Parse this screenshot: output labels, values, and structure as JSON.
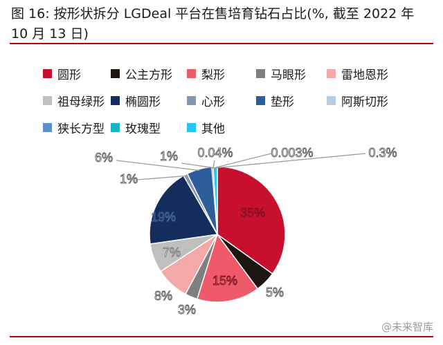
{
  "chart_data": {
    "type": "pie",
    "title": "图 16: 按形状拆分 LGDeal 平台在售培育钻石占比(%, 截至 2022 年 10 月 13 日)",
    "slices": [
      {
        "name": "圆形",
        "value": 35,
        "label": "35%",
        "color": "#c8102e"
      },
      {
        "name": "公主方形",
        "value": 5,
        "label": "5%",
        "color": "#1f1510"
      },
      {
        "name": "梨形",
        "value": 15,
        "label": "15%",
        "color": "#ef5a6b"
      },
      {
        "name": "马眼形",
        "value": 3,
        "label": "3%",
        "color": "#7f7f7f"
      },
      {
        "name": "雷地恩形",
        "value": 8,
        "label": "8%",
        "color": "#f4a9a9"
      },
      {
        "name": "祖母绿形",
        "value": 7,
        "label": "7%",
        "color": "#bfbfbf"
      },
      {
        "name": "椭圆形",
        "value": 19,
        "label": "19%",
        "color": "#142d5c"
      },
      {
        "name": "心形",
        "value": 1,
        "label": "1%",
        "color": "#8497b0"
      },
      {
        "name": "垫形",
        "value": 6,
        "label": "6%",
        "color": "#2e5e99"
      },
      {
        "name": "阿斯切形",
        "value": 0.3,
        "label": "0.3%",
        "color": "#b8cce4"
      },
      {
        "name": "狭长方型",
        "value": 0.003,
        "label": "0.003%",
        "color": "#5b8fd0"
      },
      {
        "name": "玫瑰型",
        "value": 0.04,
        "label": "0.04%",
        "color": "#17b3c7"
      },
      {
        "name": "其他",
        "value": 1,
        "label": "1%",
        "color": "#27c4f5"
      }
    ],
    "legend_placement": "top"
  },
  "watermark": "@未来智库"
}
